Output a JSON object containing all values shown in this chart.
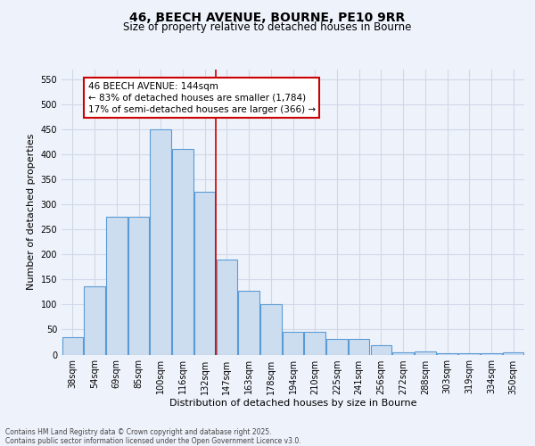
{
  "title_line1": "46, BEECH AVENUE, BOURNE, PE10 9RR",
  "title_line2": "Size of property relative to detached houses in Bourne",
  "xlabel": "Distribution of detached houses by size in Bourne",
  "ylabel": "Number of detached properties",
  "categories": [
    "38sqm",
    "54sqm",
    "69sqm",
    "85sqm",
    "100sqm",
    "116sqm",
    "132sqm",
    "147sqm",
    "163sqm",
    "178sqm",
    "194sqm",
    "210sqm",
    "225sqm",
    "241sqm",
    "256sqm",
    "272sqm",
    "288sqm",
    "303sqm",
    "319sqm",
    "334sqm",
    "350sqm"
  ],
  "values": [
    35,
    137,
    275,
    275,
    450,
    410,
    325,
    190,
    128,
    101,
    46,
    46,
    32,
    32,
    18,
    5,
    7,
    2,
    2,
    2,
    4
  ],
  "bar_color": "#ccddf0",
  "bar_edge_color": "#5b9bd5",
  "background_color": "#eef2fb",
  "grid_color": "#d0d8e8",
  "vline_color": "#cc0000",
  "vline_x_index": 7,
  "annotation_line1": "46 BEECH AVENUE: 144sqm",
  "annotation_line2": "← 83% of detached houses are smaller (1,784)",
  "annotation_line3": "17% of semi-detached houses are larger (366) →",
  "ylim_max": 570,
  "yticks": [
    0,
    50,
    100,
    150,
    200,
    250,
    300,
    350,
    400,
    450,
    500,
    550
  ],
  "footnote": "Contains HM Land Registry data © Crown copyright and database right 2025.\nContains public sector information licensed under the Open Government Licence v3.0.",
  "title_fontsize": 10,
  "subtitle_fontsize": 8.5,
  "axis_label_fontsize": 8,
  "tick_fontsize": 7,
  "annotation_fontsize": 7.5,
  "footnote_fontsize": 5.5
}
